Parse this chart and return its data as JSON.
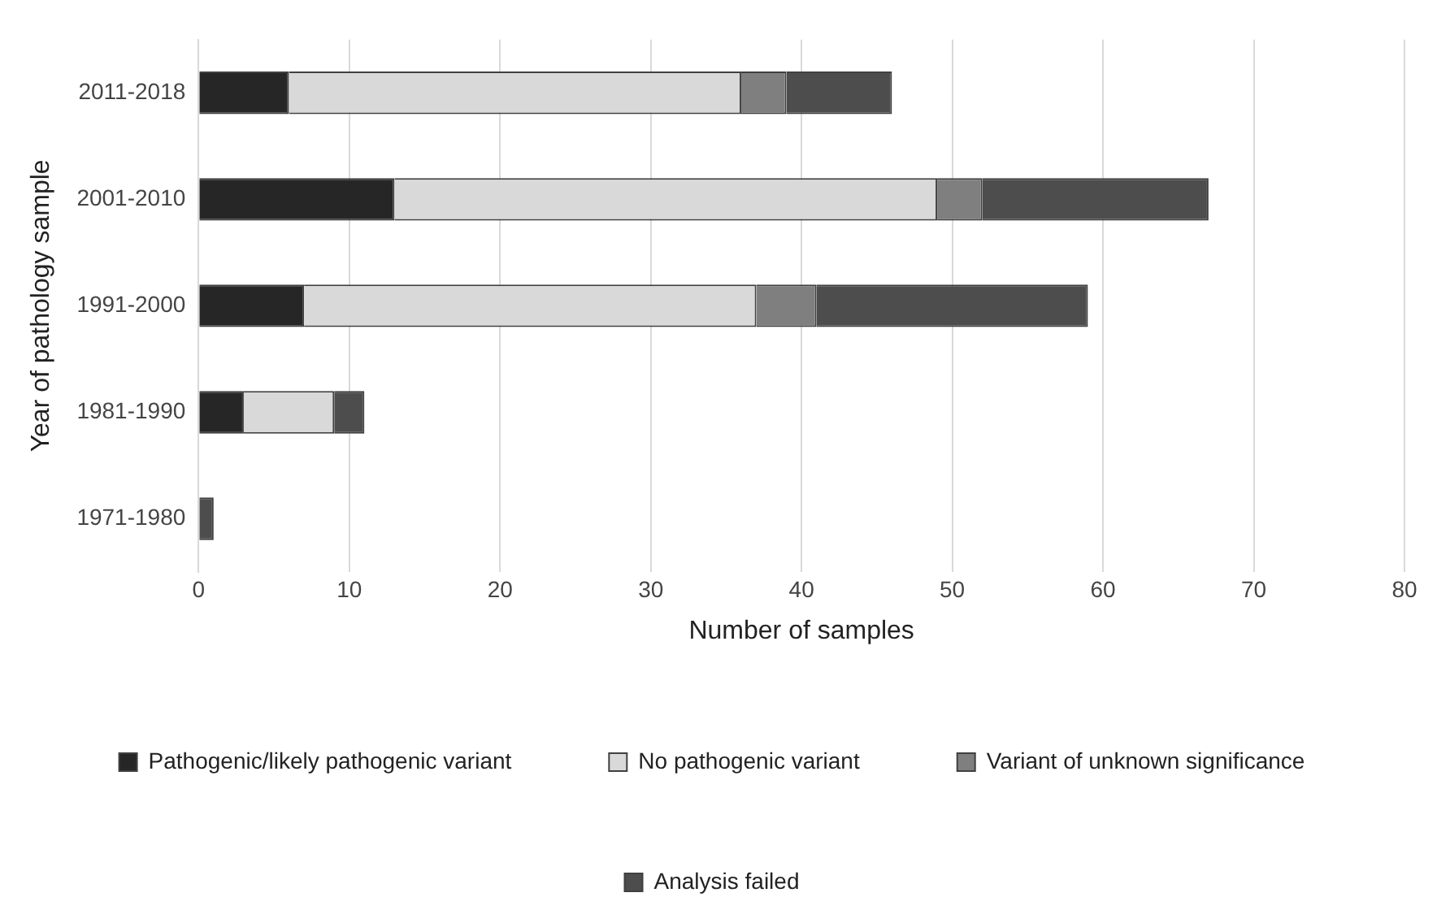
{
  "chart_data": {
    "type": "bar",
    "orientation": "horizontal",
    "stacked": true,
    "xlabel": "Number of samples",
    "ylabel": "Year of pathology sample",
    "categories": [
      "2011-2018",
      "2001-2010",
      "1991-2000",
      "1981-1990",
      "1971-1980"
    ],
    "series": [
      {
        "name": "Pathogenic/likely pathogenic variant",
        "color": "#262626",
        "values": [
          6,
          13,
          7,
          3,
          0
        ]
      },
      {
        "name": "No pathogenic variant",
        "color": "#d9d9d9",
        "values": [
          30,
          36,
          30,
          6,
          0
        ]
      },
      {
        "name": "Variant of unknown significance",
        "color": "#7f7f7f",
        "values": [
          3,
          3,
          4,
          0,
          0
        ]
      },
      {
        "name": "Analysis failed",
        "color": "#4d4d4d",
        "values": [
          7,
          15,
          18,
          2,
          1
        ]
      }
    ],
    "xlim": [
      0,
      80
    ],
    "xticks": [
      0,
      10,
      20,
      30,
      40,
      50,
      60,
      70,
      80
    ],
    "grid": "x",
    "legend": "bottom"
  }
}
